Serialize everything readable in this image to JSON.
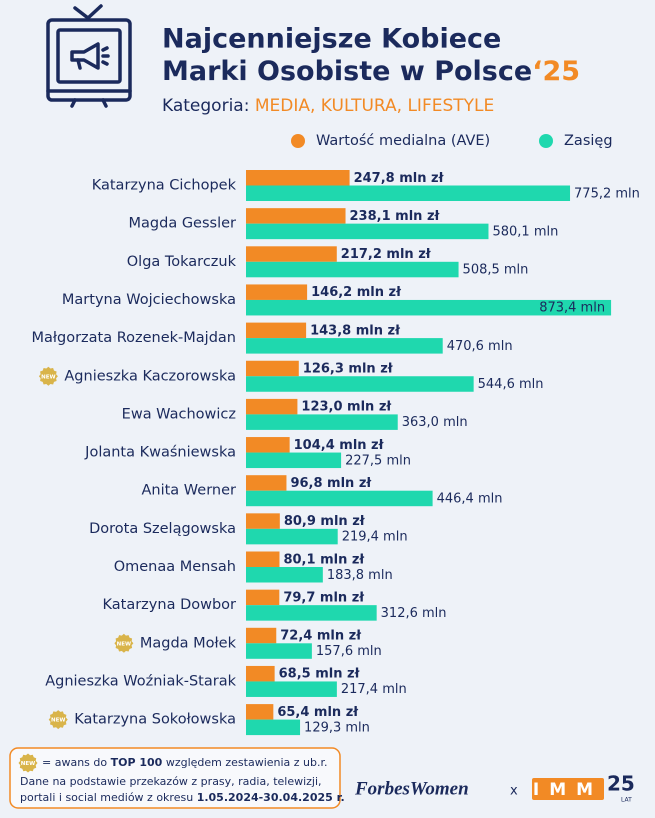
{
  "header": {
    "title_line1": "Najcenniejsze Kobiece",
    "title_line2": "Marki Osobiste w Polsce",
    "title_year": "‘25",
    "category_label": "Kategoria:",
    "category_value": "MEDIA, KULTURA, LIFESTYLE"
  },
  "chart_data": {
    "type": "bar",
    "orientation": "horizontal",
    "categories": [
      "Katarzyna Cichopek",
      "Magda Gessler",
      "Olga Tokarczuk",
      "Martyna Wojciechowska",
      "Małgorzata Rozenek-Majdan",
      "Agnieszka Kaczorowska",
      "Ewa Wachowicz",
      "Jolanta Kwaśniewska",
      "Anita Werner",
      "Dorota Szelągowska",
      "Omenaa Mensah",
      "Katarzyna Dowbor",
      "Magda Mołek",
      "Agnieszka Woźniak-Starak",
      "Katarzyna Sokołowska"
    ],
    "new": [
      false,
      false,
      false,
      false,
      false,
      true,
      false,
      false,
      false,
      false,
      false,
      false,
      true,
      false,
      true
    ],
    "badge_text": "NEW",
    "series": [
      {
        "name": "Wartość medialna (AVE)",
        "color": "#f28a25",
        "values": [
          247.8,
          238.1,
          217.2,
          146.2,
          143.8,
          126.3,
          123.0,
          104.4,
          96.8,
          80.9,
          80.1,
          79.7,
          72.4,
          68.5,
          65.4
        ],
        "value_labels": [
          "247,8 mln zł",
          "238,1 mln zł",
          "217,2 mln zł",
          "146,2 mln zł",
          "143,8 mln zł",
          "126,3 mln zł",
          "123,0 mln zł",
          "104,4 mln zł",
          "96,8 mln zł",
          "80,9 mln zł",
          "80,1 mln zł",
          "79,7 mln zł",
          "72,4 mln zł",
          "68,5 mln zł",
          "65,4 mln zł"
        ]
      },
      {
        "name": "Zasięg",
        "color": "#1fd8ae",
        "values": [
          775.2,
          580.1,
          508.5,
          873.4,
          470.6,
          544.6,
          363.0,
          227.5,
          446.4,
          219.4,
          183.8,
          312.6,
          157.6,
          217.4,
          129.3
        ],
        "value_labels": [
          "775,2 mln",
          "580,1 mln",
          "508,5 mln",
          "873,4 mln",
          "470,6 mln",
          "544,6 mln",
          "363,0 mln",
          "227,5 mln",
          "446,4 mln",
          "219,4 mln",
          "183,8 mln",
          "312,6 mln",
          "157,6 mln",
          "217,4 mln",
          "129,3 mln"
        ]
      }
    ]
  },
  "footer": {
    "note_prefix": "= awans do",
    "note_bold": "TOP 100",
    "note_suffix": "względem zestawienia z ub.r.",
    "source_line1": "Dane na podstawie przekazów z prasy, radia, telewizji,",
    "source_line2": "portali i social mediów z okresu",
    "source_period": "1.05.2024-30.04.2025 r.",
    "logo_forbes": "ForbesWomen",
    "logo_x": "x",
    "logo_imm": "IMM",
    "logo_25": "25",
    "logo_lat": "LAT"
  }
}
